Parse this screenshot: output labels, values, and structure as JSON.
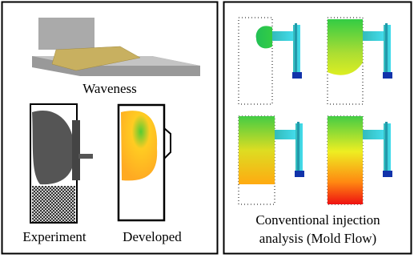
{
  "left": {
    "top_label": "Waveness",
    "bottom_labels": [
      "Experiment",
      "Developed"
    ]
  },
  "right": {
    "caption_lines": [
      "Conventional injection",
      "analysis (Mold Flow)"
    ]
  }
}
